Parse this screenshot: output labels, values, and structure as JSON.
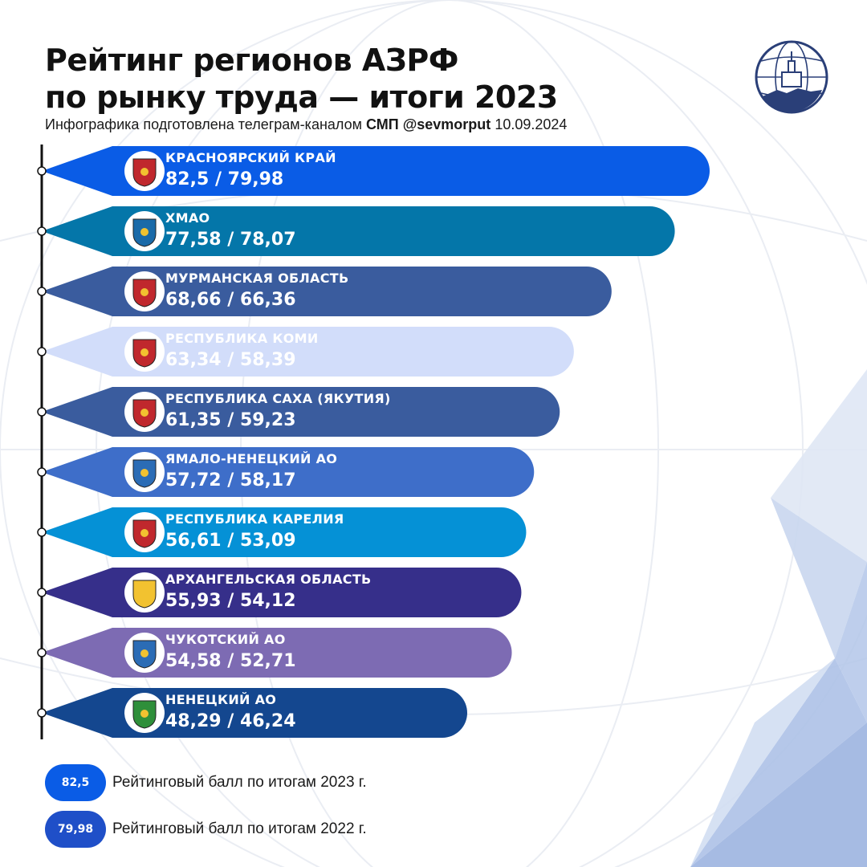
{
  "header": {
    "title_line1": "Рейтинг регионов АЗРФ",
    "title_line2": "по рынку труда — итоги 2023",
    "subtitle_prefix": "Инфографика подготовлена телеграм-каналом",
    "subtitle_channel": "СМП @sevmorput",
    "subtitle_date": "10.09.2024"
  },
  "colors": {
    "legend_2023": "#0a5ce6",
    "legend_2022": "#1f4fc8"
  },
  "legend": [
    {
      "value": "82,5",
      "text": "Рейтинговый балл по итогам 2023 г."
    },
    {
      "value": "79,98",
      "text": "Рейтинговый балл по итогам 2022 г."
    }
  ],
  "chart_data": {
    "type": "bar",
    "orientation": "horizontal",
    "categories": [
      "КРАСНОЯРСКИЙ КРАЙ",
      "ХМАО",
      "МУРМАНСКАЯ ОБЛАСТЬ",
      "РЕСПУБЛИКА КОМИ",
      "РЕСПУБЛИКА САХА (ЯКУТИЯ)",
      "ЯМАЛО-НЕНЕЦКИЙ АО",
      "РЕСПУБЛИКА КАРЕЛИЯ",
      "АРХАНГЕЛЬСКАЯ ОБЛАСТЬ",
      "ЧУКОТСКИЙ АО",
      "НЕНЕЦКИЙ АО"
    ],
    "series": [
      {
        "name": "Рейтинговый балл по итогам 2023 г.",
        "values": [
          82.5,
          77.58,
          68.66,
          63.34,
          61.35,
          57.72,
          56.61,
          55.93,
          54.58,
          48.29
        ]
      },
      {
        "name": "Рейтинговый балл по итогам 2022 г.",
        "values": [
          79.98,
          78.07,
          66.36,
          58.39,
          59.23,
          58.17,
          53.09,
          54.12,
          52.71,
          46.24
        ]
      }
    ],
    "value_labels": [
      "82,5 / 79,98",
      "77,58 / 78,07",
      "68,66 / 66,36",
      "63,34 / 58,39",
      "61,35 / 59,23",
      "57,72 / 58,17",
      "56,61 / 53,09",
      "55,93 / 54,12",
      "54,58 / 52,71",
      "48,29 / 46,24"
    ],
    "bar_colors": [
      "#0a5ce6",
      "#0476a9",
      "#3a5c9e",
      "#d2ddfa",
      "#3a5c9e",
      "#3e6ec9",
      "#0591d6",
      "#362f8a",
      "#7d6bb3",
      "#14478f"
    ],
    "emblem_icons": [
      "krasnoyarsk-krai-emblem-icon",
      "khmao-emblem-icon",
      "murmansk-oblast-emblem-icon",
      "komi-republic-emblem-icon",
      "sakha-yakutia-emblem-icon",
      "yamalo-nenets-emblem-icon",
      "karelia-republic-emblem-icon",
      "arkhangelsk-oblast-emblem-icon",
      "chukotka-emblem-icon",
      "nenets-ao-emblem-icon"
    ],
    "emblem_colors": [
      "#c0282d",
      "#1a6aa8",
      "#c0282d",
      "#c0282d",
      "#c0282d",
      "#2b6cb5",
      "#c0282d",
      "#f2c230",
      "#2b6cb5",
      "#2f8f3a"
    ],
    "bar_encodes": "Рейтинговый балл по итогам 2023 г.",
    "legend": "bottom-left",
    "grid": false
  }
}
